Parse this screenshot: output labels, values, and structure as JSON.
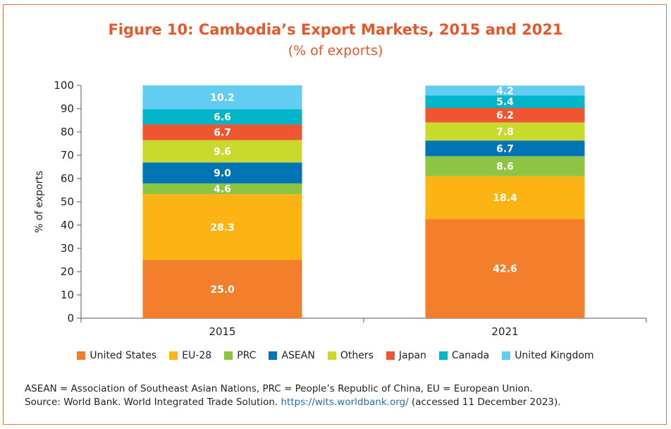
{
  "chart_data": {
    "type": "bar",
    "stacked": true,
    "title": "Figure 10: Cambodia’s Export Markets, 2015 and 2021",
    "subtitle": "(% of exports)",
    "xlabel": "",
    "ylabel": "% of exports",
    "ylim": [
      0,
      100
    ],
    "yticks": [
      0,
      10,
      20,
      30,
      40,
      50,
      60,
      70,
      80,
      90,
      100
    ],
    "categories": [
      "2015",
      "2021"
    ],
    "series": [
      {
        "name": "United States",
        "color": "#F37F2C",
        "values": [
          25.0,
          42.6
        ],
        "labels": [
          "25.0",
          "42.6"
        ]
      },
      {
        "name": "EU-28",
        "color": "#FCB415",
        "values": [
          28.3,
          18.4
        ],
        "labels": [
          "28.3",
          "18.4"
        ]
      },
      {
        "name": "PRC",
        "color": "#8CC543",
        "values": [
          4.6,
          8.6
        ],
        "labels": [
          "4.6",
          "8.6"
        ]
      },
      {
        "name": "ASEAN",
        "color": "#0074B5",
        "values": [
          9.0,
          6.7
        ],
        "labels": [
          "9.0",
          "6.7"
        ]
      },
      {
        "name": "Others",
        "color": "#C9DA2C",
        "values": [
          9.6,
          7.8
        ],
        "labels": [
          "9.6",
          "7.8"
        ]
      },
      {
        "name": "Japan",
        "color": "#EE5530",
        "values": [
          6.7,
          6.2
        ],
        "labels": [
          "6.7",
          "6.2"
        ]
      },
      {
        "name": "Canada",
        "color": "#00B5CA",
        "values": [
          6.6,
          5.4
        ],
        "labels": [
          "6.6",
          "5.4"
        ]
      },
      {
        "name": "United Kingdom",
        "color": "#63CDF1",
        "values": [
          10.2,
          4.2
        ],
        "labels": [
          "10.2",
          "4.2"
        ]
      }
    ],
    "legend_position": "bottom"
  },
  "footer": {
    "note": "ASEAN = Association of Southeast Asian Nations, PRC = People’s Republic of China, EU = European Union.",
    "source_prefix": "Source: World Bank. World Integrated Trade Solution. ",
    "source_link": "https://wits.worldbank.org/",
    "source_suffix": " (accessed 11 December 2023)."
  },
  "colors": {
    "accent": "#E8562A",
    "border": "#E2793E",
    "link": "#1F6FB5"
  }
}
